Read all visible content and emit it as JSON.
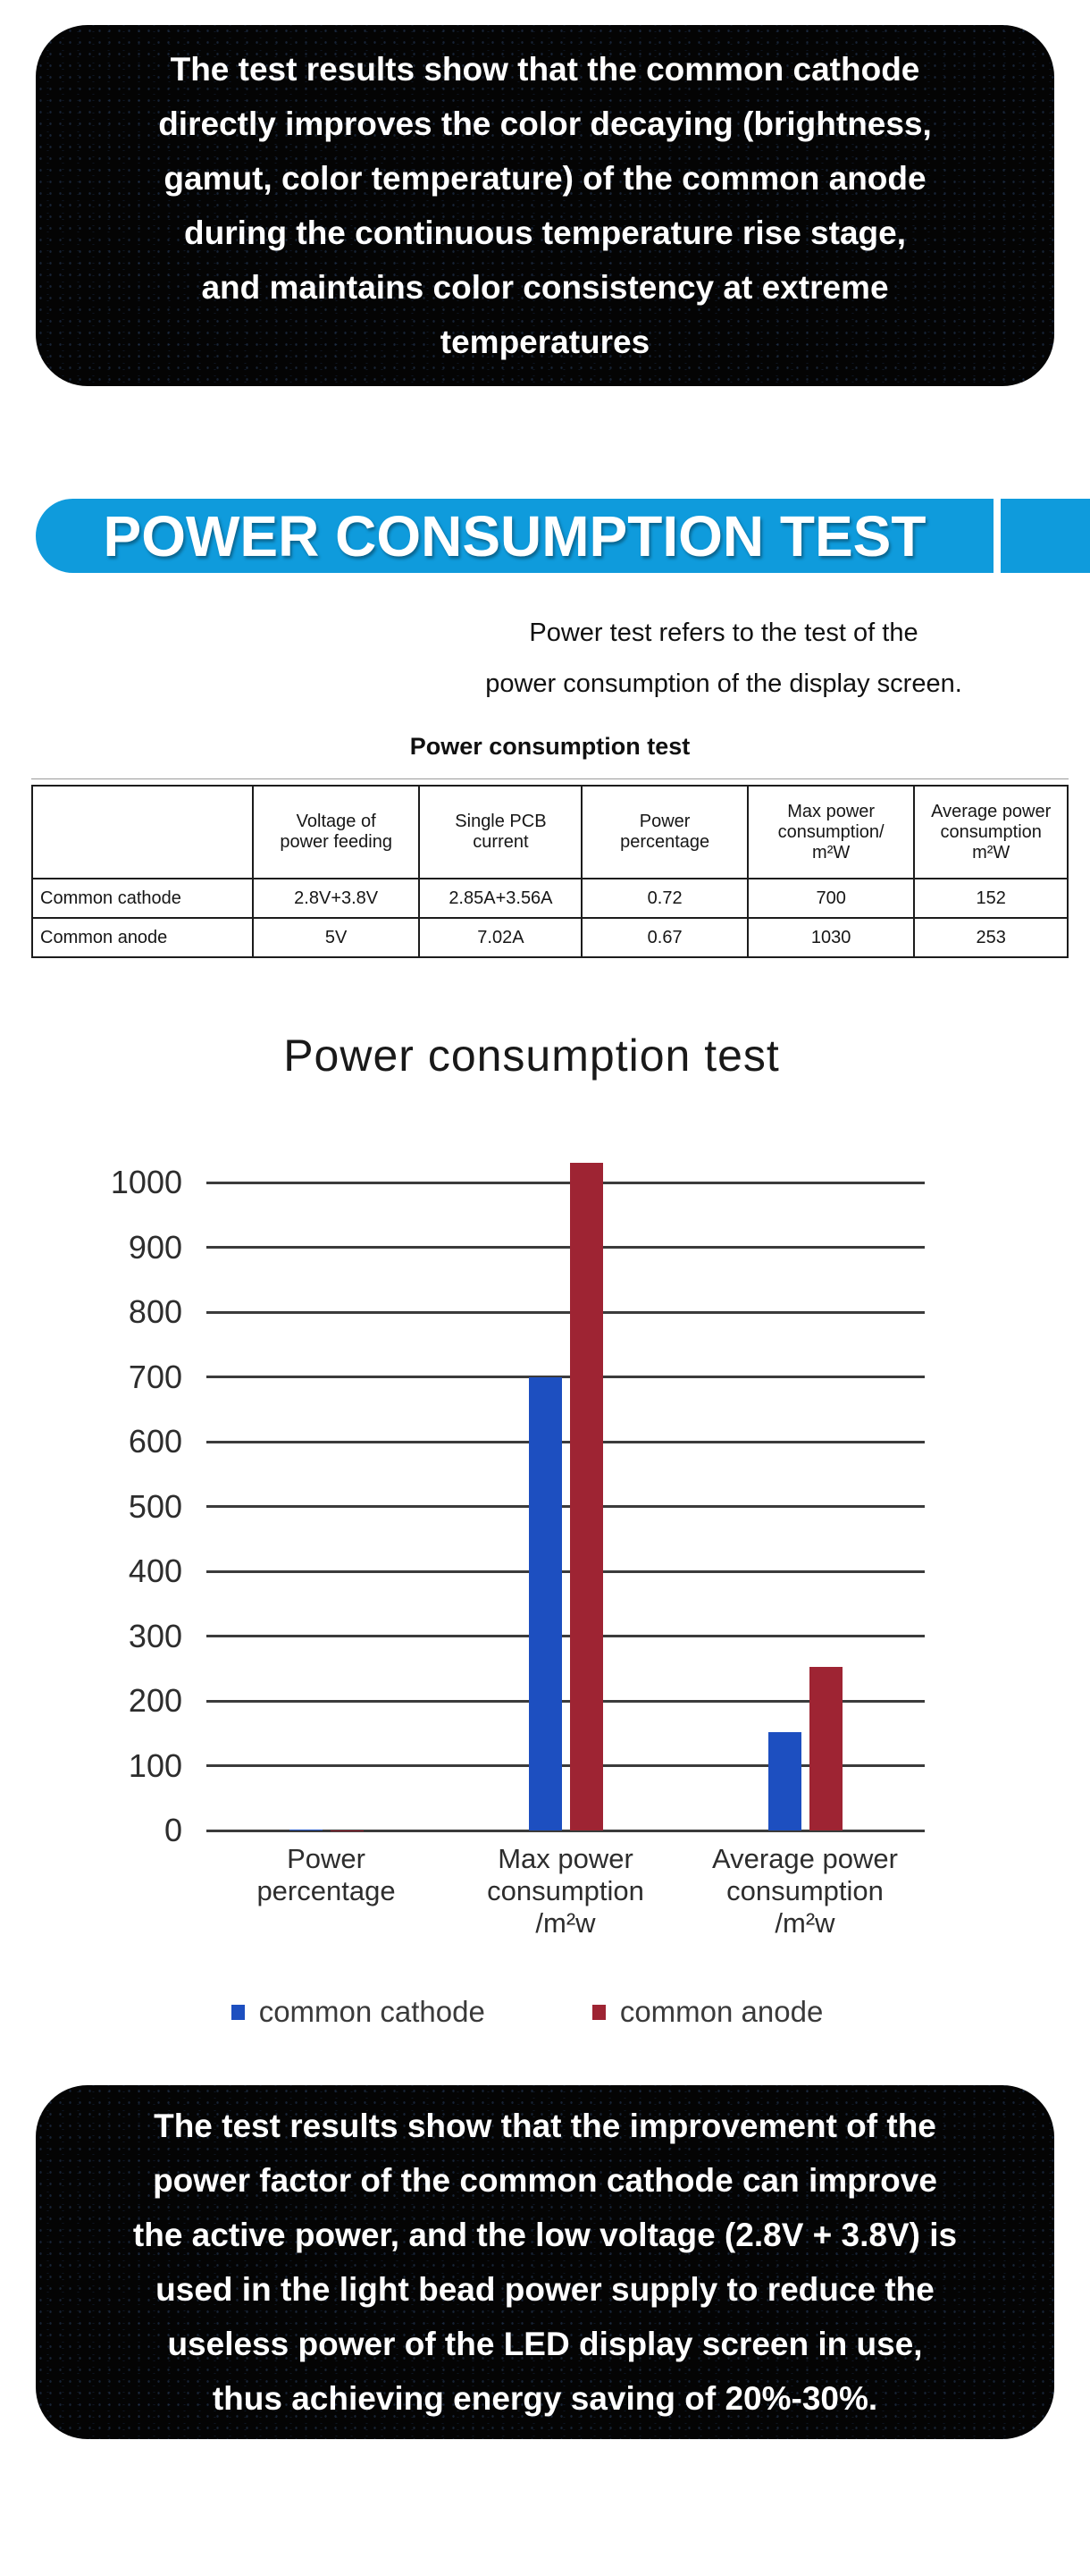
{
  "top_box": {
    "text": "The test results show that the common cathode\ndirectly improves the color decaying (brightness,\ngamut, color temperature) of the common anode\nduring the continuous temperature rise stage,\nand maintains color consistency at extreme\ntemperatures"
  },
  "banner": {
    "title": "POWER CONSUMPTION TEST",
    "color": "#0f9bdc"
  },
  "intro": {
    "text": "Power test refers to the test of the\npower consumption of the display screen."
  },
  "table": {
    "title": "Power consumption test",
    "headers": [
      "",
      "Voltage of\npower feeding",
      "Single PCB\ncurrent",
      "Power\npercentage",
      "Max power\nconsumption/\nm²W",
      "Average power\nconsumption\nm²W"
    ],
    "rows": [
      [
        "Common cathode",
        "2.8V+3.8V",
        "2.85A+3.56A",
        "0.72",
        "700",
        "152"
      ],
      [
        "Common anode",
        "5V",
        "7.02A",
        "0.67",
        "1030",
        "253"
      ]
    ]
  },
  "chart_data": {
    "type": "bar",
    "title": "Power consumption test",
    "categories": [
      "Power\npercentage",
      "Max power\nconsumption\n/m²w",
      "Average power\nconsumption\n/m²w"
    ],
    "series": [
      {
        "name": "common cathode",
        "color": "#1d4fc0",
        "values": [
          0.72,
          700,
          152
        ]
      },
      {
        "name": "common anode",
        "color": "#9e2433",
        "values": [
          0.67,
          1030,
          253
        ]
      }
    ],
    "ylim": [
      0,
      1000
    ],
    "tick_step": 100,
    "grid": true,
    "legend_position": "bottom"
  },
  "bottom_box": {
    "text": "The test results show that the improvement of the\npower factor of the common cathode can improve\nthe active power, and the low voltage (2.8V + 3.8V) is\nused in the light bead power supply to reduce the\nuseless power of the LED display screen in use,\nthus achieving energy saving of 20%-30%."
  }
}
